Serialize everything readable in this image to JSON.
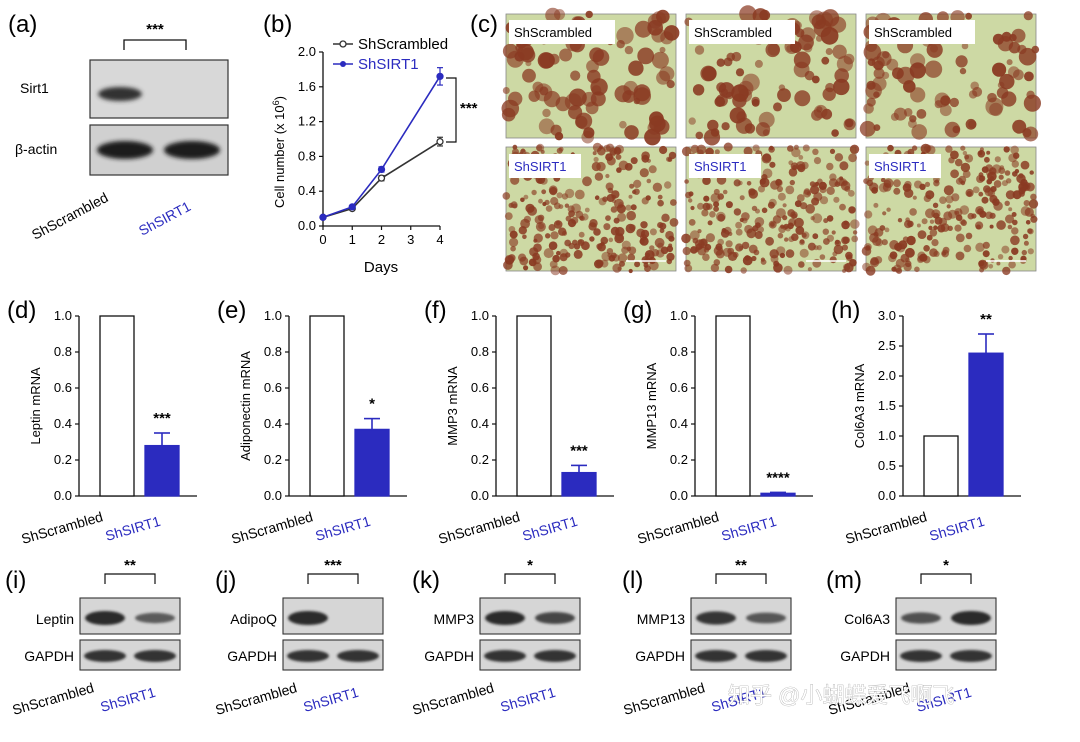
{
  "colors": {
    "control": "#ffffff",
    "treatment": "#2b2bbf",
    "control_line": "#333333",
    "axis": "#111111",
    "blot_bg": "#d6d6d6",
    "band": "#222222",
    "micro_bg": "#cdd9a4",
    "micro_cell": "#8a3a22"
  },
  "groups": {
    "control": "ShScrambled",
    "treatment": "ShSIRT1"
  },
  "panels": {
    "a": {
      "letter": "(a)",
      "sig": "***",
      "bands": [
        "Sirt1",
        "β-actin"
      ]
    },
    "b": {
      "letter": "(b)"
    },
    "c": {
      "letter": "(c)",
      "tags_top": [
        "ShScrambled",
        "ShScrambled",
        "ShScrambled"
      ],
      "tags_bottom": [
        "ShSIRT1",
        "ShSIRT1",
        "ShSIRT1"
      ]
    },
    "i": {
      "letter": "(i)",
      "sig": "**",
      "bands": [
        "Leptin",
        "GAPDH"
      ]
    },
    "j": {
      "letter": "(j)",
      "sig": "***",
      "bands": [
        "AdipoQ",
        "GAPDH"
      ]
    },
    "k": {
      "letter": "(k)",
      "sig": "*",
      "bands": [
        "MMP3",
        "GAPDH"
      ]
    },
    "l": {
      "letter": "(l)",
      "sig": "**",
      "bands": [
        "MMP13",
        "GAPDH"
      ]
    },
    "m": {
      "letter": "(m)",
      "sig": "*",
      "bands": [
        "Col6A3",
        "GAPDH"
      ]
    }
  },
  "chart_data": [
    {
      "id": "b",
      "type": "line",
      "x": [
        0,
        1,
        2,
        4
      ],
      "xlabel": "Days",
      "ylabel": "Cell number (x 10",
      "ylabel_sup": "6",
      "ylabel_end": ")",
      "xlim": [
        0,
        4
      ],
      "ylim": [
        0,
        2.0
      ],
      "xticks": [
        "0",
        "1",
        "2",
        "3",
        "4"
      ],
      "yticks": [
        "0.0",
        "0.4",
        "0.8",
        "1.2",
        "1.6",
        "2.0"
      ],
      "series": [
        {
          "name": "ShScrambled",
          "values": [
            0.1,
            0.2,
            0.55,
            0.97
          ],
          "errors": [
            0.01,
            0.02,
            0.03,
            0.05
          ]
        },
        {
          "name": "ShSIRT1",
          "values": [
            0.1,
            0.22,
            0.65,
            1.72
          ],
          "errors": [
            0.01,
            0.02,
            0.03,
            0.1
          ]
        }
      ],
      "significance": "***",
      "legend": "top-left"
    },
    {
      "id": "d",
      "type": "bar",
      "letter": "(d)",
      "categories": [
        "ShScrambled",
        "ShSIRT1"
      ],
      "values": [
        1.0,
        0.28
      ],
      "errors": [
        0,
        0.07
      ],
      "ylabel": "Leptin mRNA",
      "ylim": [
        0,
        1.0
      ],
      "yticks": [
        "0.0",
        "0.2",
        "0.4",
        "0.6",
        "0.8",
        "1.0"
      ],
      "significance": "***"
    },
    {
      "id": "e",
      "type": "bar",
      "letter": "(e)",
      "categories": [
        "ShScrambled",
        "ShSIRT1"
      ],
      "values": [
        1.0,
        0.37
      ],
      "errors": [
        0,
        0.06
      ],
      "ylabel": "Adiponectin mRNA",
      "ylim": [
        0,
        1.0
      ],
      "yticks": [
        "0.0",
        "0.2",
        "0.4",
        "0.6",
        "0.8",
        "1.0"
      ],
      "significance": "*"
    },
    {
      "id": "f",
      "type": "bar",
      "letter": "(f)",
      "categories": [
        "ShScrambled",
        "ShSIRT1"
      ],
      "values": [
        1.0,
        0.13
      ],
      "errors": [
        0,
        0.04
      ],
      "ylabel": "MMP3 mRNA",
      "ylim": [
        0,
        1.0
      ],
      "yticks": [
        "0.0",
        "0.2",
        "0.4",
        "0.6",
        "0.8",
        "1.0"
      ],
      "significance": "***"
    },
    {
      "id": "g",
      "type": "bar",
      "letter": "(g)",
      "categories": [
        "ShScrambled",
        "ShSIRT1"
      ],
      "values": [
        1.0,
        0.015
      ],
      "errors": [
        0,
        0.005
      ],
      "ylabel": "MMP13 mRNA",
      "ylim": [
        0,
        1.0
      ],
      "yticks": [
        "0.0",
        "0.2",
        "0.4",
        "0.6",
        "0.8",
        "1.0"
      ],
      "significance": "****"
    },
    {
      "id": "h",
      "type": "bar",
      "letter": "(h)",
      "categories": [
        "ShScrambled",
        "ShSIRT1"
      ],
      "values": [
        1.0,
        2.38
      ],
      "errors": [
        0,
        0.32
      ],
      "ylabel": "Col6A3 mRNA",
      "ylim": [
        0,
        3.0
      ],
      "yticks": [
        "0.0",
        "0.5",
        "1.0",
        "1.5",
        "2.0",
        "2.5",
        "3.0"
      ],
      "significance": "**"
    }
  ],
  "watermark": "知乎 @小蝴蝶爱飞啊飞"
}
